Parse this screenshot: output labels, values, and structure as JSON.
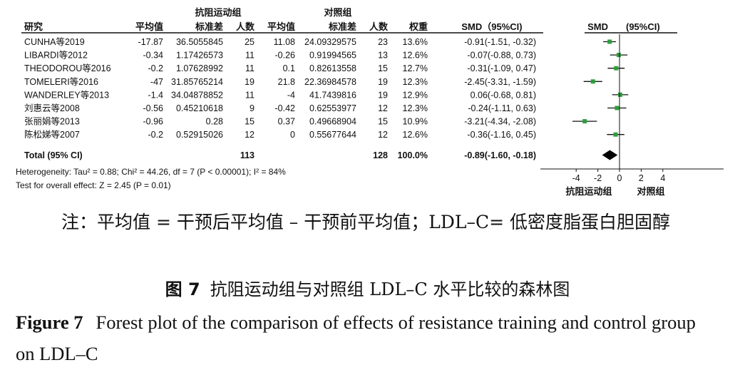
{
  "headers": {
    "study": "研究",
    "exp_group": "抗阻运动组",
    "ctrl_group": "对照组",
    "mean": "平均值",
    "sd": "标准差",
    "n": "人数",
    "weight": "权重",
    "smd_ci": "SMD（95%CI)",
    "plot_smd": "SMD",
    "plot_ci": "(95%CI)"
  },
  "chart_data": {
    "type": "forest",
    "studies": [
      {
        "name": "CUNHA等2019",
        "exp_mean": "-17.87",
        "exp_sd": "36.5055845",
        "exp_n": "25",
        "ctrl_mean": "11.08",
        "ctrl_sd": "24.09329575",
        "ctrl_n": "23",
        "weight": "13.6%",
        "ci_text": "-0.91(-1.51, -0.32)",
        "smd": -0.91,
        "lo": -1.51,
        "hi": -0.32
      },
      {
        "name": "LIBARDI等2012",
        "exp_mean": "-0.34",
        "exp_sd": "1.17426573",
        "exp_n": "11",
        "ctrl_mean": "-0.26",
        "ctrl_sd": "0.91994565",
        "ctrl_n": "13",
        "weight": "12.6%",
        "ci_text": "-0.07(-0.88, 0.73)",
        "smd": -0.07,
        "lo": -0.88,
        "hi": 0.73
      },
      {
        "name": "THEODOROU等2016",
        "exp_mean": "-0.2",
        "exp_sd": "1.07628992",
        "exp_n": "11",
        "ctrl_mean": "0.1",
        "ctrl_sd": "0.82613558",
        "ctrl_n": "15",
        "weight": "12.7%",
        "ci_text": "-0.31(-1.09, 0.47)",
        "smd": -0.31,
        "lo": -1.09,
        "hi": 0.47
      },
      {
        "name": "TOMELERI等2016",
        "exp_mean": "-47",
        "exp_sd": "31.85765214",
        "exp_n": "19",
        "ctrl_mean": "21.8",
        "ctrl_sd": "22.36984578",
        "ctrl_n": "19",
        "weight": "12.3%",
        "ci_text": "-2.45(-3.31, -1.59)",
        "smd": -2.45,
        "lo": -3.31,
        "hi": -1.59
      },
      {
        "name": "WANDERLEY等2013",
        "exp_mean": "-1.4",
        "exp_sd": "34.04878852",
        "exp_n": "11",
        "ctrl_mean": "-4",
        "ctrl_sd": "41.7439816",
        "ctrl_n": "19",
        "weight": "12.9%",
        "ci_text": "0.06(-0.68, 0.81)",
        "smd": 0.06,
        "lo": -0.68,
        "hi": 0.81
      },
      {
        "name": "刘惠云等2008",
        "exp_mean": "-0.56",
        "exp_sd": "0.45210618",
        "exp_n": "9",
        "ctrl_mean": "-0.42",
        "ctrl_sd": "0.62553977",
        "ctrl_n": "12",
        "weight": "12.3%",
        "ci_text": "-0.24(-1.11, 0.63)",
        "smd": -0.24,
        "lo": -1.11,
        "hi": 0.63
      },
      {
        "name": "张丽娟等2013",
        "exp_mean": "-0.96",
        "exp_sd": "0.28",
        "exp_n": "15",
        "ctrl_mean": "0.37",
        "ctrl_sd": "0.49668904",
        "ctrl_n": "15",
        "weight": "10.9%",
        "ci_text": "-3.21(-4.34, -2.08)",
        "smd": -3.21,
        "lo": -4.34,
        "hi": -2.08
      },
      {
        "name": "陈松娣等2007",
        "exp_mean": "-0.2",
        "exp_sd": "0.52915026",
        "exp_n": "12",
        "ctrl_mean": "0",
        "ctrl_sd": "0.55677644",
        "ctrl_n": "12",
        "weight": "12.6%",
        "ci_text": "-0.36(-1.16, 0.45)",
        "smd": -0.36,
        "lo": -1.16,
        "hi": 0.45
      }
    ],
    "total": {
      "label": "Total (95% CI)",
      "exp_n": "113",
      "ctrl_n": "128",
      "weight": "100.0%",
      "ci_text": "-0.89(-1.60, -0.18)",
      "smd": -0.89,
      "lo": -1.6,
      "hi": -0.18
    },
    "heterogeneity": "Heterogeneity: Tau² = 0.88; Chi² = 44.26, df = 7 (P < 0.00001); I² = 84%",
    "overall_test": "Test for overall effect: Z = 2.45 (P = 0.01)",
    "xlim": [
      -4.5,
      4.5
    ],
    "ticks": [
      -4,
      -2,
      0,
      2,
      4
    ],
    "left_label": "抗阻运动组",
    "right_label": "对照组",
    "marker_color": "#2e9e3e",
    "line_color": "#111111"
  },
  "note": "注：平均值 = 干预后平均值 – 干预前平均值；LDL–C= 低密度脂蛋白胆固醇",
  "caption_cn": {
    "label": "图 7",
    "text": "抗阻运动组与对照组 LDL–C 水平比较的森林图"
  },
  "caption_en": {
    "label": "Figure 7",
    "text": "Forest plot of the comparison of effects of resistance training and control group on LDL–C"
  }
}
